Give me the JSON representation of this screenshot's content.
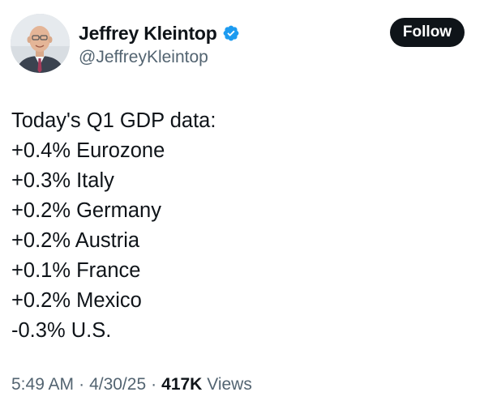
{
  "author": {
    "display_name": "Jeffrey Kleintop",
    "handle": "@JeffreyKleintop",
    "verified_icon": "verified-badge-icon",
    "avatar_icon": "avatar-photo"
  },
  "follow_button": {
    "label": "Follow"
  },
  "tweet": {
    "lines": [
      "Today's Q1 GDP data:",
      "+0.4% Eurozone",
      "+0.3% Italy",
      "+0.2% Germany",
      "+0.2% Austria",
      "+0.1% France",
      "+0.2% Mexico",
      "-0.3% U.S."
    ]
  },
  "meta": {
    "time": "5:49 AM",
    "separator": "·",
    "date": "4/30/25",
    "views_count": "417K",
    "views_label": "Views"
  },
  "colors": {
    "text_primary": "#0f1419",
    "text_secondary": "#536471",
    "verified_blue": "#1d9bf0",
    "button_bg": "#0f1419",
    "button_text": "#ffffff"
  }
}
